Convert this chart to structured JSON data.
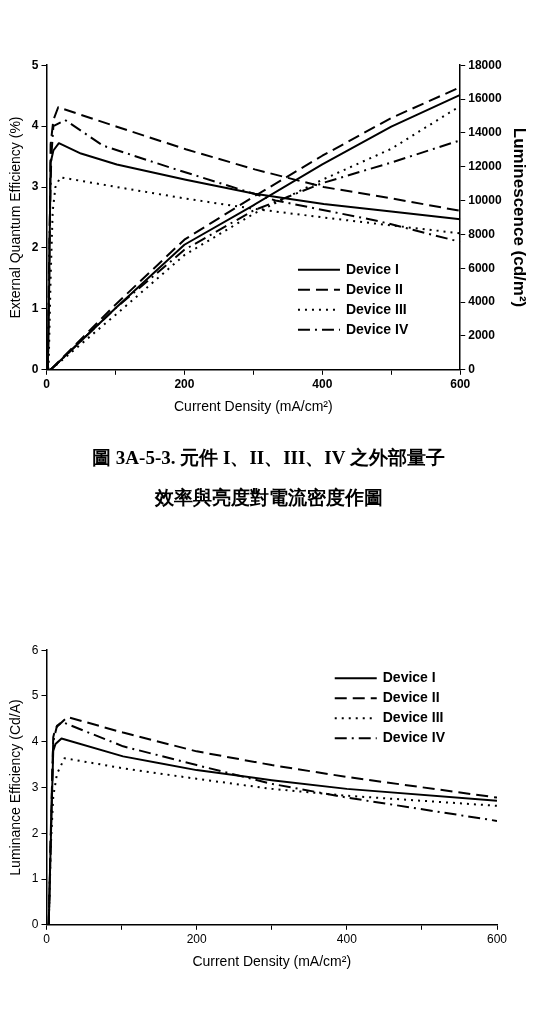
{
  "chart_data": [
    {
      "type": "line",
      "xlabel": "Current Density (mA/cm²)",
      "ylabel": "External Quantum Efficiency (%)",
      "y2label": "Luminescence (cd/m²)",
      "xlim": [
        0,
        600
      ],
      "xticks": [
        0,
        {
          "value": 100,
          "label": null
        },
        200,
        {
          "value": 300,
          "label": null
        },
        400,
        {
          "value": 500,
          "label": null
        },
        600
      ],
      "ylim": [
        0,
        5
      ],
      "yticks": [
        0,
        1,
        2,
        3,
        4,
        5
      ],
      "y2lim": [
        0,
        18000
      ],
      "y2ticks": [
        0,
        2000,
        4000,
        6000,
        8000,
        10000,
        12000,
        14000,
        16000,
        18000
      ],
      "grid": false,
      "legend": "bottom right",
      "annotations": [
        "圖 3A-5-3.  元件 I、II、III、IV 之外部量子效率與亮度對電流密度作圖"
      ],
      "series": [
        {
          "name": "Device I",
          "color": "#000000",
          "line_style": "solid",
          "x": [
            2,
            4,
            6,
            10,
            18,
            50,
            102,
            202,
            302,
            402,
            500,
            600
          ],
          "values": [
            0,
            1.5,
            3.4,
            3.6,
            3.72,
            3.55,
            3.37,
            3.12,
            2.89,
            2.72,
            2.6,
            2.47
          ]
        },
        {
          "name": "Device II",
          "color": "#000000",
          "line_style": "dashed",
          "x": [
            2,
            4,
            6,
            10,
            17,
            102,
            202,
            302,
            402,
            502,
            600
          ],
          "values": [
            0,
            1.5,
            3.7,
            4.1,
            4.31,
            3.99,
            3.62,
            3.29,
            3.0,
            2.81,
            2.61
          ]
        },
        {
          "name": "Device III",
          "color": "#000000",
          "line_style": "dotted",
          "x": [
            3,
            6,
            9,
            13,
            20,
            102,
            202,
            302,
            402,
            500,
            600
          ],
          "values": [
            0,
            1.5,
            2.6,
            3.0,
            3.16,
            3.0,
            2.81,
            2.64,
            2.5,
            2.37,
            2.24
          ]
        },
        {
          "name": "Device IV",
          "color": "#000000",
          "line_style": "dashdot",
          "x": [
            2,
            4,
            7,
            10,
            27,
            82,
            182,
            332,
            482,
            600
          ],
          "values": [
            0,
            2,
            3.5,
            4.0,
            4.1,
            3.68,
            3.31,
            2.78,
            2.44,
            2.1
          ]
        },
        {
          "color": "#000000",
          "line_style": "solid",
          "axis": "y2",
          "x": [
            6,
            100,
            200,
            300,
            400,
            500,
            600
          ],
          "values": [
            0,
            3640,
            7390,
            9720,
            12140,
            14370,
            16250
          ]
        },
        {
          "color": "#000000",
          "line_style": "dashed",
          "axis": "y2",
          "x": [
            6,
            100,
            200,
            300,
            400,
            500,
            600
          ],
          "values": [
            0,
            3850,
            7690,
            10220,
            12650,
            14880,
            16700
          ]
        },
        {
          "color": "#000000",
          "line_style": "dotted",
          "axis": "y2",
          "x": [
            6,
            100,
            200,
            300,
            400,
            500,
            600
          ],
          "values": [
            0,
            3240,
            6780,
            9210,
            11230,
            13060,
            15590
          ]
        },
        {
          "color": "#000000",
          "line_style": "dashdot",
          "axis": "y2",
          "x": [
            6,
            100,
            200,
            300,
            400,
            500,
            600
          ],
          "values": [
            0,
            3640,
            7090,
            9410,
            11030,
            12250,
            13560
          ]
        }
      ]
    },
    {
      "type": "line",
      "xlabel": "Current Density (mA/cm²)",
      "ylabel": "Luminance Efficiency (Cd/A)",
      "xlim": [
        0,
        600
      ],
      "xticks": [
        0,
        {
          "value": 100,
          "label": null
        },
        200,
        {
          "value": 300,
          "label": null
        },
        400,
        {
          "value": 500,
          "label": null
        },
        600
      ],
      "ylim": [
        0,
        6
      ],
      "yticks": [
        0,
        1,
        2,
        3,
        4,
        5,
        6
      ],
      "grid": false,
      "legend": "top right",
      "series": [
        {
          "name": "Device I",
          "color": "#000000",
          "line_style": "solid",
          "x": [
            3,
            6,
            9,
            12,
            20,
            102,
            200,
            300,
            400,
            600
          ],
          "values": [
            0,
            2,
            3.8,
            3.95,
            4.07,
            3.68,
            3.38,
            3.16,
            2.97,
            2.71
          ]
        },
        {
          "name": "Device II",
          "color": "#000000",
          "line_style": "dashed",
          "x": [
            3,
            6,
            9,
            12,
            28,
            102,
            200,
            300,
            400,
            600
          ],
          "values": [
            0,
            2.2,
            4.1,
            4.3,
            4.54,
            4.2,
            3.79,
            3.49,
            3.23,
            2.78
          ]
        },
        {
          "name": "Device III",
          "color": "#000000",
          "line_style": "dotted",
          "x": [
            3,
            6,
            9,
            14,
            24,
            102,
            200,
            300,
            400,
            600
          ],
          "values": [
            0,
            1.8,
            2.8,
            3.3,
            3.64,
            3.42,
            3.19,
            2.97,
            2.82,
            2.6
          ]
        },
        {
          "name": "Device IV",
          "color": "#000000",
          "line_style": "dashdot",
          "x": [
            3,
            6,
            9,
            14,
            21,
            102,
            200,
            300,
            400,
            600
          ],
          "values": [
            0,
            2.1,
            4.0,
            4.35,
            4.43,
            3.9,
            3.49,
            3.08,
            2.78,
            2.27
          ]
        }
      ]
    }
  ]
}
